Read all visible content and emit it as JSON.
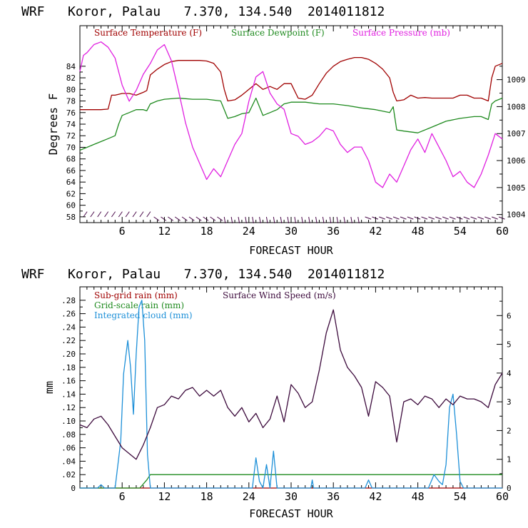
{
  "colors": {
    "background": "#ffffff",
    "axis": "#000000",
    "temperature": "#a00000",
    "dewpoint": "#1e8a1e",
    "pressure": "#e020e0",
    "wind_barbs": "#4a0a4a",
    "subgrid_rain": "#a00000",
    "gridscale_rain": "#1e8a1e",
    "cloud": "#1e90d8",
    "wind_speed": "#3c0a3c"
  },
  "chart_data": [
    {
      "type": "line",
      "title": "WRF   Koror, Palau   7.370, 134.540  2014011812",
      "xlabel": "FORECAST HOUR",
      "ylabel": "Degrees F",
      "xlim": [
        0,
        60
      ],
      "ylim": [
        57,
        91
      ],
      "y2lim": [
        1003.7,
        1011
      ],
      "x_ticks": [
        6,
        12,
        18,
        24,
        30,
        36,
        42,
        48,
        54,
        60
      ],
      "x_tick_labels": [
        "6",
        "12",
        "18",
        "24",
        "30",
        "36",
        "42",
        "48",
        "54",
        "60"
      ],
      "y_ticks": [
        58,
        60,
        62,
        64,
        66,
        68,
        70,
        72,
        74,
        76,
        78,
        80,
        82,
        84
      ],
      "y_tick_labels": [
        "58",
        "60",
        "62",
        "64",
        "66",
        "68",
        "70",
        "72",
        "74",
        "76",
        "78",
        "80",
        "82",
        "84"
      ],
      "y2_ticks": [
        1004,
        1005,
        1006,
        1007,
        1008,
        1009
      ],
      "y2_tick_labels": [
        "1004",
        "1005",
        "1006",
        "1007",
        "1008",
        "1009"
      ],
      "grid": false,
      "legend_position": "top",
      "series": [
        {
          "name": "Surface Temperature (F)",
          "axis": "left",
          "color": "#a00000",
          "x": [
            0,
            1,
            2,
            3,
            4,
            4.5,
            5,
            6,
            7,
            8,
            9,
            9.5,
            10,
            11,
            12,
            13,
            14,
            15,
            16,
            17,
            18,
            19,
            20,
            20.5,
            21,
            22,
            23,
            24,
            25,
            26,
            27,
            28,
            29,
            30,
            31,
            32,
            33,
            34,
            35,
            36,
            37,
            38,
            39,
            40,
            41,
            42,
            43,
            44,
            44.5,
            45,
            46,
            47,
            48,
            49,
            50,
            51,
            52,
            53,
            54,
            55,
            56,
            57,
            58,
            58.5,
            59,
            60
          ],
          "y": [
            76.5,
            76.5,
            76.5,
            76.5,
            76.6,
            79,
            79,
            79.3,
            79.3,
            79,
            79.5,
            79.8,
            82.5,
            83.5,
            84.3,
            84.8,
            85,
            85,
            85,
            85,
            84.9,
            84.5,
            83,
            80,
            78,
            78.2,
            79,
            80,
            81,
            80,
            80.5,
            80,
            81,
            81,
            78.5,
            78.3,
            79,
            81,
            82.8,
            84,
            84.8,
            85.2,
            85.5,
            85.5,
            85.2,
            84.5,
            83.5,
            82,
            79.5,
            78,
            78.2,
            79,
            78.5,
            78.6,
            78.5,
            78.5,
            78.5,
            78.5,
            79,
            79,
            78.5,
            78.5,
            78,
            82,
            84,
            84.5
          ]
        },
        {
          "name": "Surface Dewpoint (F)",
          "axis": "left",
          "color": "#1e8a1e",
          "x": [
            0,
            1,
            2,
            3,
            4,
            5,
            5.5,
            6,
            7,
            8,
            9,
            9.5,
            10,
            11,
            12,
            14,
            16,
            18,
            20,
            20.5,
            21,
            22,
            23,
            24,
            25,
            26,
            27,
            28,
            29,
            30,
            32,
            34,
            36,
            38,
            40,
            42,
            44,
            44.5,
            45,
            46,
            48,
            50,
            52,
            54,
            56,
            57,
            58,
            58.5,
            59,
            60
          ],
          "y": [
            69.5,
            70,
            70.5,
            71,
            71.5,
            72,
            74,
            75.5,
            76,
            76.5,
            76.5,
            76.3,
            77.5,
            78,
            78.3,
            78.5,
            78.3,
            78.3,
            78,
            76.5,
            75,
            75.3,
            75.8,
            76,
            78.5,
            75.5,
            76,
            76.5,
            77.5,
            77.8,
            77.8,
            77.5,
            77.5,
            77.2,
            76.8,
            76.5,
            76,
            77,
            73,
            72.8,
            72.5,
            73.5,
            74.5,
            75,
            75.3,
            75.3,
            74.8,
            77.5,
            78,
            78.5
          ]
        },
        {
          "name": "Surface Pressure (mb)",
          "axis": "right",
          "color": "#e020e0",
          "x": [
            0,
            0.5,
            1,
            2,
            3,
            4,
            5,
            6,
            7,
            8,
            9,
            10,
            11,
            12,
            13,
            14,
            15,
            16,
            17,
            18,
            19,
            20,
            21,
            22,
            23,
            24,
            25,
            26,
            27,
            28,
            29,
            30,
            31,
            32,
            33,
            34,
            35,
            36,
            37,
            38,
            39,
            40,
            41,
            42,
            43,
            44,
            45,
            46,
            47,
            48,
            49,
            50,
            51,
            52,
            53,
            54,
            55,
            56,
            57,
            58,
            59,
            60
          ],
          "y": [
            1009.3,
            1009.9,
            1010.0,
            1010.3,
            1010.4,
            1010.2,
            1009.8,
            1008.8,
            1008.2,
            1008.6,
            1009.2,
            1009.6,
            1010.1,
            1010.3,
            1009.7,
            1008.6,
            1007.4,
            1006.5,
            1005.9,
            1005.3,
            1005.7,
            1005.4,
            1006.0,
            1006.6,
            1007.0,
            1008.2,
            1009.1,
            1009.3,
            1008.5,
            1008.1,
            1007.9,
            1007.0,
            1006.9,
            1006.6,
            1006.7,
            1006.9,
            1007.2,
            1007.1,
            1006.6,
            1006.3,
            1006.5,
            1006.5,
            1006.0,
            1005.2,
            1005.0,
            1005.5,
            1005.2,
            1005.8,
            1006.4,
            1006.8,
            1006.3,
            1007.0,
            1006.5,
            1006.0,
            1005.4,
            1005.6,
            1005.2,
            1005.0,
            1005.5,
            1006.2,
            1007.0,
            1006.8
          ]
        }
      ]
    },
    {
      "type": "line",
      "title": "WRF   Koror, Palau   7.370, 134.540  2014011812",
      "xlabel": "FORECAST HOUR",
      "ylabel": "mm",
      "xlim": [
        0,
        60
      ],
      "ylim": [
        0,
        0.3
      ],
      "y2lim": [
        0,
        7
      ],
      "x_ticks": [
        6,
        12,
        18,
        24,
        30,
        36,
        42,
        48,
        54,
        60
      ],
      "x_tick_labels": [
        "6",
        "12",
        "18",
        "24",
        "30",
        "36",
        "42",
        "48",
        "54",
        "60"
      ],
      "y_ticks": [
        0,
        0.02,
        0.04,
        0.06,
        0.08,
        0.1,
        0.12,
        0.14,
        0.16,
        0.18,
        0.2,
        0.22,
        0.24,
        0.26,
        0.28
      ],
      "y_tick_labels": [
        "0",
        ".02",
        ".04",
        ".06",
        ".08",
        ".10",
        ".12",
        ".14",
        ".16",
        ".18",
        ".20",
        ".22",
        ".24",
        ".26",
        ".28"
      ],
      "y2_ticks": [
        0,
        1,
        2,
        3,
        4,
        5,
        6
      ],
      "y2_tick_labels": [
        "0",
        "1",
        "2",
        "3",
        "4",
        "5",
        "6"
      ],
      "grid": false,
      "legend_position": "top-left",
      "series": [
        {
          "name": "Sub-grid rain (mm)",
          "axis": "left",
          "color": "#a00000",
          "x": [
            0,
            60
          ],
          "y": [
            0,
            0
          ]
        },
        {
          "name": "Grid-scale rain (mm)",
          "axis": "left",
          "color": "#1e8a1e",
          "x": [
            0,
            8.5,
            9.5,
            10,
            60
          ],
          "y": [
            0,
            0,
            0.012,
            0.02,
            0.02
          ]
        },
        {
          "name": "Integrated cloud (mm)",
          "axis": "left",
          "color": "#1e90d8",
          "x": [
            0,
            2.5,
            3,
            3.5,
            5,
            5.8,
            6.2,
            6.8,
            7.2,
            7.6,
            8.0,
            8.4,
            8.8,
            9.2,
            9.6,
            10.0,
            10.3,
            24.5,
            25,
            25.5,
            26,
            26.5,
            27,
            27.5,
            28,
            28.5,
            29,
            32.8,
            33,
            33.2,
            40.5,
            41,
            41.5,
            49.5,
            50.3,
            51,
            51.5,
            52,
            52.5,
            53,
            53.5,
            54,
            54.5,
            55,
            60
          ],
          "y": [
            0,
            0,
            0.005,
            0,
            0,
            0.07,
            0.17,
            0.22,
            0.18,
            0.11,
            0.2,
            0.27,
            0.28,
            0.22,
            0.05,
            0.0,
            0,
            0,
            0.045,
            0.01,
            0.0,
            0.035,
            0.0,
            0.055,
            0.0,
            0.0,
            0,
            0,
            0.012,
            0,
            0,
            0.012,
            0,
            0,
            0.02,
            0.01,
            0.005,
            0.035,
            0.12,
            0.14,
            0.08,
            0.01,
            0,
            0,
            0
          ]
        },
        {
          "name": "Surface Wind Speed (m/s)",
          "axis": "right",
          "color": "#3c0a3c",
          "x": [
            0,
            1,
            2,
            3,
            4,
            5,
            6,
            7,
            8,
            9,
            10,
            11,
            12,
            13,
            14,
            15,
            16,
            17,
            18,
            19,
            20,
            21,
            22,
            23,
            24,
            25,
            26,
            27,
            28,
            29,
            30,
            31,
            32,
            33,
            34,
            35,
            36,
            37,
            38,
            39,
            40,
            41,
            42,
            43,
            44,
            45,
            46,
            47,
            48,
            49,
            50,
            51,
            52,
            53,
            54,
            55,
            56,
            57,
            58,
            59,
            60
          ],
          "y": [
            2.2,
            2.1,
            2.4,
            2.5,
            2.2,
            1.8,
            1.4,
            1.2,
            1.0,
            1.5,
            2.1,
            2.8,
            2.9,
            3.2,
            3.1,
            3.4,
            3.5,
            3.2,
            3.4,
            3.2,
            3.4,
            2.8,
            2.5,
            2.8,
            2.3,
            2.6,
            2.1,
            2.4,
            3.2,
            2.3,
            3.6,
            3.3,
            2.8,
            3.0,
            4.1,
            5.4,
            6.2,
            4.8,
            4.2,
            3.9,
            3.5,
            2.5,
            3.7,
            3.5,
            3.2,
            1.6,
            3.0,
            3.1,
            2.9,
            3.2,
            3.1,
            2.8,
            3.1,
            2.9,
            3.2,
            3.1,
            3.1,
            3.0,
            2.8,
            3.6,
            4.0
          ]
        }
      ]
    }
  ]
}
